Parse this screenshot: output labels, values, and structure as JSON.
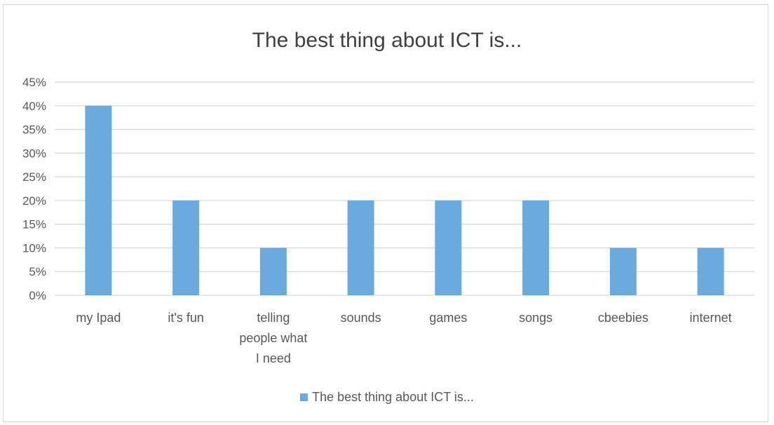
{
  "chart_data": {
    "type": "bar",
    "title": "The best thing about ICT is...",
    "categories": [
      [
        "my Ipad"
      ],
      [
        "it's fun"
      ],
      [
        "telling",
        "people what",
        "I need"
      ],
      [
        "sounds"
      ],
      [
        "games"
      ],
      [
        "songs"
      ],
      [
        "cbeebies"
      ],
      [
        "internet"
      ]
    ],
    "series": [
      {
        "name": "The best thing about ICT is...",
        "values": [
          40,
          20,
          10,
          20,
          20,
          20,
          10,
          10
        ],
        "color": "#6aaade"
      }
    ],
    "ylim": [
      0,
      45
    ],
    "y_ticks": [
      0,
      5,
      10,
      15,
      20,
      25,
      30,
      35,
      40,
      45
    ],
    "y_tick_suffix": "%",
    "xlabel": "",
    "ylabel": "",
    "grid": true,
    "legend_position": "bottom",
    "colors": {
      "gridline": "#d9d9d9",
      "text": "#595959",
      "title": "#404040"
    }
  }
}
